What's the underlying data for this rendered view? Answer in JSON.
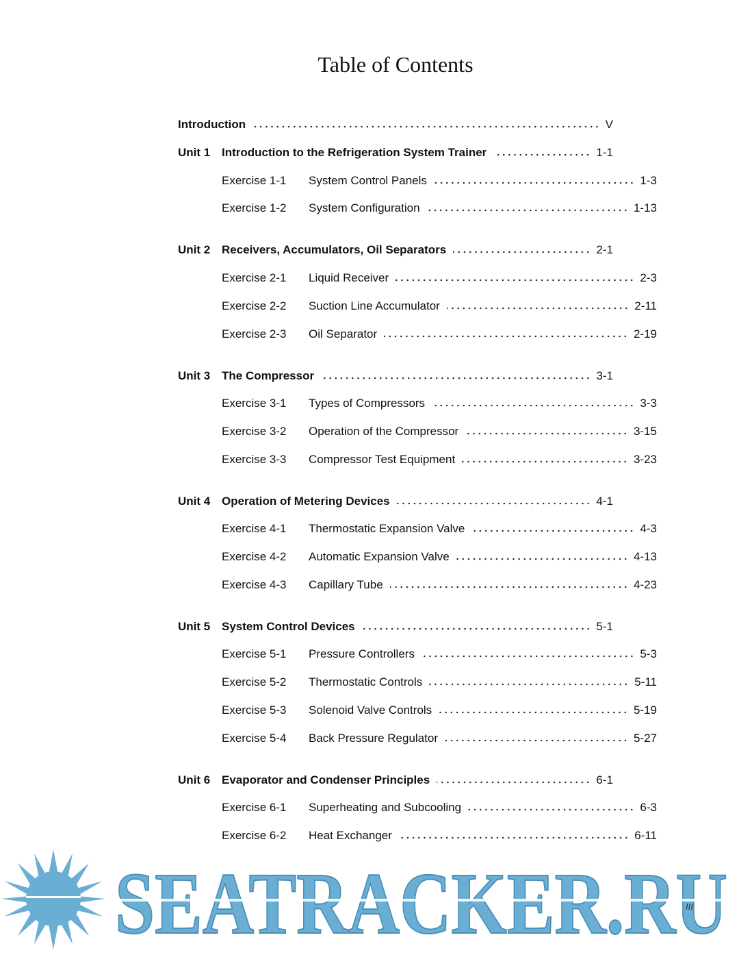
{
  "header": {
    "title": "Table of Contents"
  },
  "introduction": {
    "title": "Introduction",
    "page": "V"
  },
  "units": [
    {
      "label": "Unit 1",
      "title": "Introduction to the Refrigeration System Trainer",
      "page": "1-1",
      "exercises": [
        {
          "label": "Exercise 1-1",
          "title": "System Control Panels",
          "page": "1-3"
        },
        {
          "label": "Exercise 1-2",
          "title": "System Configuration",
          "page": "1-13"
        }
      ]
    },
    {
      "label": "Unit 2",
      "title": "Receivers, Accumulators, Oil Separators",
      "page": "2-1",
      "exercises": [
        {
          "label": "Exercise 2-1",
          "title": "Liquid Receiver",
          "page": "2-3"
        },
        {
          "label": "Exercise 2-2",
          "title": "Suction Line Accumulator",
          "page": "2-11"
        },
        {
          "label": "Exercise 2-3",
          "title": "Oil Separator",
          "page": "2-19"
        }
      ]
    },
    {
      "label": "Unit 3",
      "title": "The Compressor",
      "page": "3-1",
      "exercises": [
        {
          "label": "Exercise 3-1",
          "title": "Types of Compressors",
          "page": "3-3"
        },
        {
          "label": "Exercise 3-2",
          "title": "Operation of the Compressor",
          "page": "3-15"
        },
        {
          "label": "Exercise 3-3",
          "title": "Compressor Test Equipment",
          "page": "3-23"
        }
      ]
    },
    {
      "label": "Unit 4",
      "title": "Operation of Metering Devices",
      "page": "4-1",
      "exercises": [
        {
          "label": "Exercise 4-1",
          "title": "Thermostatic Expansion Valve",
          "page": "4-3"
        },
        {
          "label": "Exercise 4-2",
          "title": "Automatic Expansion Valve",
          "page": "4-13"
        },
        {
          "label": "Exercise 4-3",
          "title": "Capillary Tube",
          "page": "4-23"
        }
      ]
    },
    {
      "label": "Unit 5",
      "title": "System Control Devices",
      "page": "5-1",
      "exercises": [
        {
          "label": "Exercise 5-1",
          "title": "Pressure Controllers",
          "page": "5-3"
        },
        {
          "label": "Exercise 5-2",
          "title": "Thermostatic Controls",
          "page": "5-11"
        },
        {
          "label": "Exercise 5-3",
          "title": "Solenoid Valve Controls",
          "page": "5-19"
        },
        {
          "label": "Exercise 5-4",
          "title": "Back Pressure Regulator",
          "page": "5-27"
        }
      ]
    },
    {
      "label": "Unit 6",
      "title": "Evaporator and Condenser Principles",
      "page": "6-1",
      "exercises": [
        {
          "label": "Exercise 6-1",
          "title": "Superheating and Subcooling",
          "page": "6-3"
        },
        {
          "label": "Exercise 6-2",
          "title": "Heat Exchanger",
          "page": "6-11"
        }
      ]
    }
  ],
  "footer": {
    "page_number": "III",
    "watermark": "SEATRACKER.RU"
  }
}
